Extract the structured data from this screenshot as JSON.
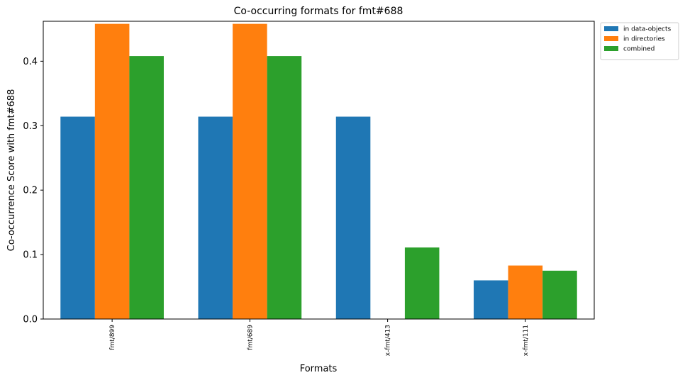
{
  "chart_data": {
    "type": "bar",
    "title": "Co-occurring formats for fmt#688",
    "xlabel": "Formats",
    "ylabel": "Co-occurrence Score with fmt#688",
    "categories": [
      "fmt/899",
      "fmt/689",
      "x-fmt/413",
      "x-fmt/111"
    ],
    "series": [
      {
        "name": "in data-objects",
        "color": "#1f77b4",
        "values": [
          0.314,
          0.314,
          0.314,
          0.06
        ]
      },
      {
        "name": "in directories",
        "color": "#ff7f0e",
        "values": [
          0.458,
          0.458,
          0.0,
          0.083
        ]
      },
      {
        "name": "combined",
        "color": "#2ca02c",
        "values": [
          0.408,
          0.408,
          0.111,
          0.075
        ]
      }
    ],
    "ylim": [
      0,
      0.462
    ],
    "yticks": [
      "0.0",
      "0.1",
      "0.2",
      "0.3",
      "0.4"
    ],
    "ytick_values": [
      0.0,
      0.1,
      0.2,
      0.3,
      0.4
    ],
    "grid": false,
    "legend_position": "outside-top-right"
  }
}
